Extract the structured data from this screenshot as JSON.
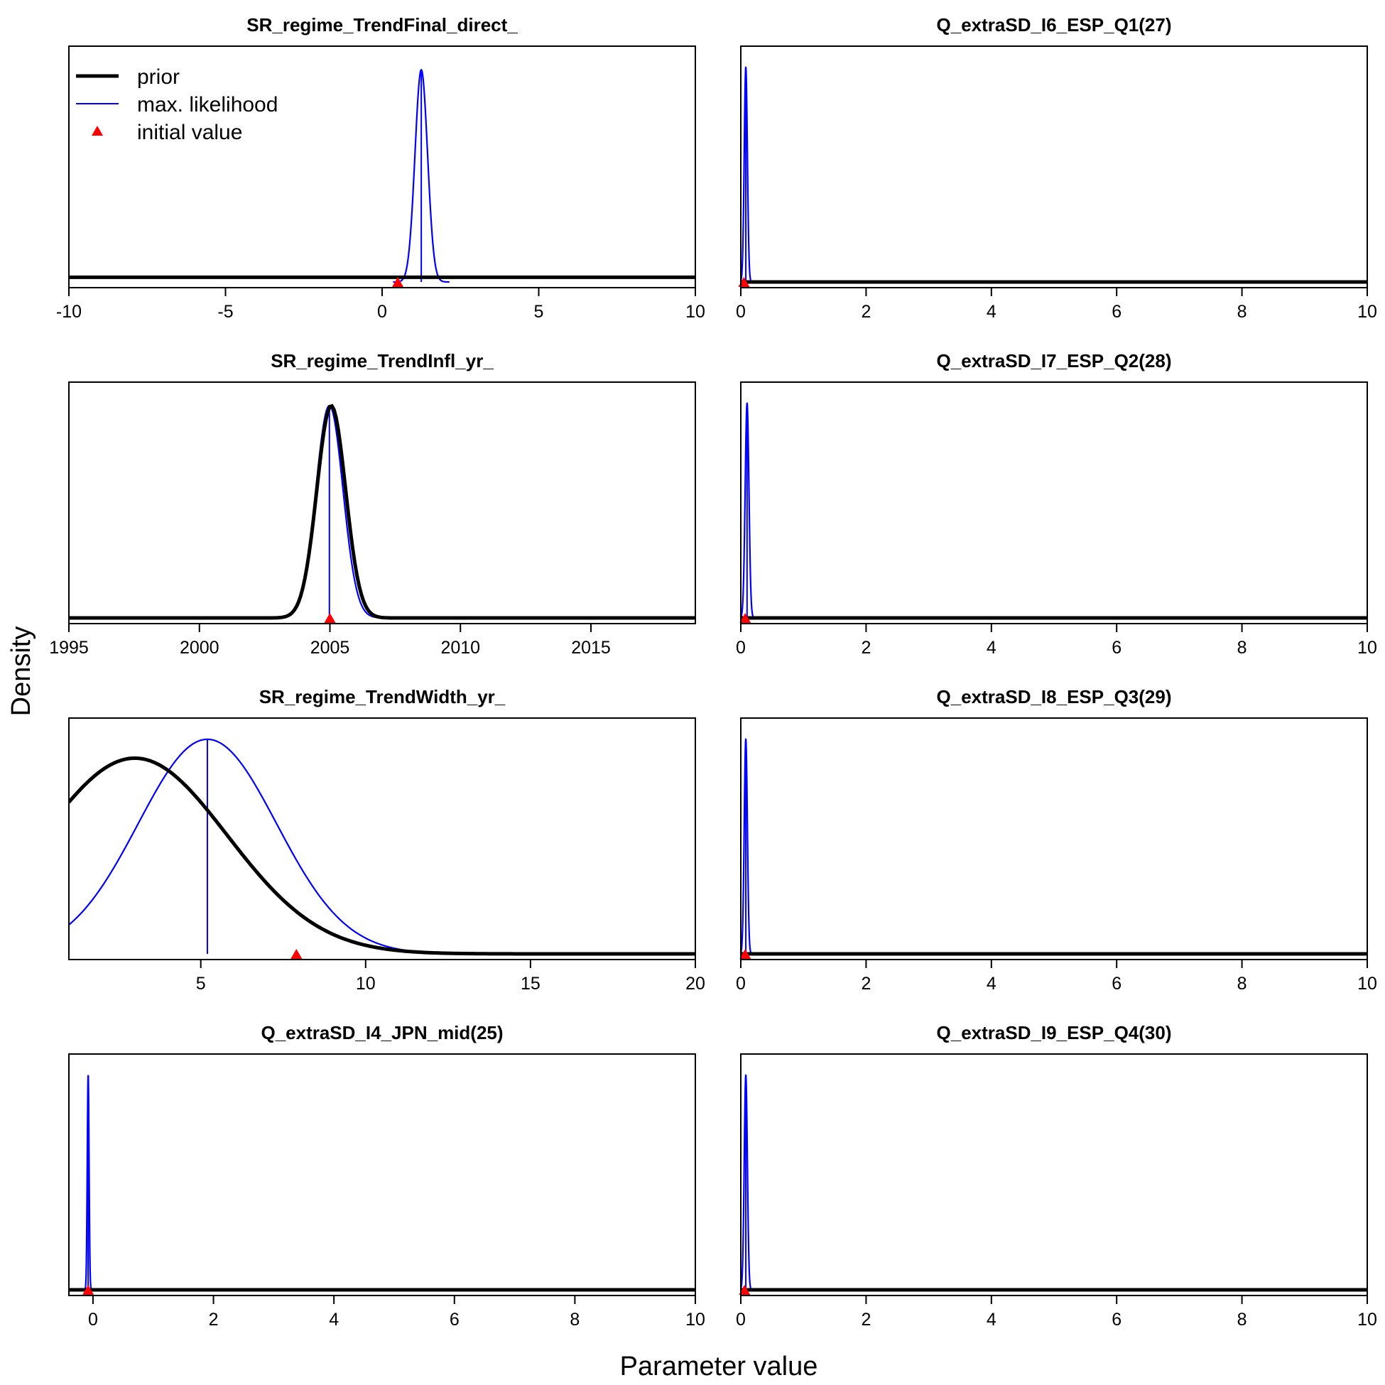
{
  "figure": {
    "xlabel": "Parameter value",
    "ylabel": "Density",
    "colors": {
      "prior": "#000000",
      "mle": "#0000ff",
      "initial": "#ff0000"
    }
  },
  "legend": {
    "placement": "top-left of first panel",
    "items": [
      {
        "label": "prior",
        "type": "thick-line",
        "color": "#000000"
      },
      {
        "label": "max. likelihood",
        "type": "thin-line",
        "color": "#0000ff"
      },
      {
        "label": "initial value",
        "type": "triangle",
        "color": "#ff0000"
      }
    ]
  },
  "chart_data": [
    {
      "type": "line",
      "title": "SR_regime_TrendFinal_direct_",
      "xlim": [
        -10,
        10
      ],
      "xticks": [
        -10,
        -5,
        0,
        5,
        10
      ],
      "xtick_labels": [
        "-10",
        "-5",
        "0",
        "5",
        "10"
      ],
      "prior": {
        "dist": "flat",
        "relative_level": 0.02
      },
      "mle": {
        "mean": 1.25,
        "sd": 0.2,
        "relative_peak": 0.9
      },
      "initial_value": 0.5
    },
    {
      "type": "line",
      "title": "Q_extraSD_I6_ESP_Q1(27)",
      "xlim": [
        0,
        10
      ],
      "xticks": [
        0,
        2,
        4,
        6,
        8,
        10
      ],
      "xtick_labels": [
        "0",
        "2",
        "4",
        "6",
        "8",
        "10"
      ],
      "prior": {
        "dist": "flat",
        "relative_level": 0.0
      },
      "mle": {
        "mean": 0.08,
        "sd": 0.025,
        "relative_peak": 0.91
      },
      "initial_value": 0.05
    },
    {
      "type": "line",
      "title": "SR_regime_TrendInfl_yr_",
      "xlim": [
        1995,
        2019
      ],
      "xticks": [
        1995,
        2000,
        2005,
        2010,
        2015
      ],
      "xtick_labels": [
        "1995",
        "2000",
        "2005",
        "2010",
        "2015"
      ],
      "prior": {
        "dist": "normal",
        "mean": 2005.05,
        "sd": 0.55,
        "relative_peak": 0.9
      },
      "mle": {
        "mean": 2004.98,
        "sd": 0.52,
        "relative_peak": 0.9
      },
      "initial_value": 2005
    },
    {
      "type": "line",
      "title": "Q_extraSD_I7_ESP_Q2(28)",
      "xlim": [
        0,
        10
      ],
      "xticks": [
        0,
        2,
        4,
        6,
        8,
        10
      ],
      "xtick_labels": [
        "0",
        "2",
        "4",
        "6",
        "8",
        "10"
      ],
      "prior": {
        "dist": "flat",
        "relative_level": 0.0
      },
      "mle": {
        "mean": 0.1,
        "sd": 0.03,
        "relative_peak": 0.91
      },
      "initial_value": 0.07
    },
    {
      "type": "line",
      "title": "SR_regime_TrendWidth_yr_",
      "xlim": [
        1,
        20
      ],
      "xticks": [
        5,
        10,
        15,
        20
      ],
      "xtick_labels": [
        "5",
        "10",
        "15",
        "20"
      ],
      "prior": {
        "dist": "normal",
        "mean": 3.0,
        "sd": 2.8,
        "relative_peak": 0.83
      },
      "mle": {
        "mean": 5.2,
        "sd": 2.1,
        "relative_peak": 0.91
      },
      "initial_value": 7.9
    },
    {
      "type": "line",
      "title": "Q_extraSD_I8_ESP_Q3(29)",
      "xlim": [
        0,
        10
      ],
      "xticks": [
        0,
        2,
        4,
        6,
        8,
        10
      ],
      "xtick_labels": [
        "0",
        "2",
        "4",
        "6",
        "8",
        "10"
      ],
      "prior": {
        "dist": "flat",
        "relative_level": 0.0
      },
      "mle": {
        "mean": 0.08,
        "sd": 0.025,
        "relative_peak": 0.91
      },
      "initial_value": 0.07
    },
    {
      "type": "line",
      "title": "Q_extraSD_I4_JPN_mid(25)",
      "xlim": [
        -0.4,
        10
      ],
      "xticks": [
        0,
        2,
        4,
        6,
        8,
        10
      ],
      "xtick_labels": [
        "0",
        "2",
        "4",
        "6",
        "8",
        "10"
      ],
      "prior": {
        "dist": "flat",
        "relative_level": 0.0
      },
      "mle": {
        "mean": -0.08,
        "sd": 0.015,
        "relative_peak": 0.91
      },
      "initial_value": -0.08
    },
    {
      "type": "line",
      "title": "Q_extraSD_I9_ESP_Q4(30)",
      "xlim": [
        0,
        10
      ],
      "xticks": [
        0,
        2,
        4,
        6,
        8,
        10
      ],
      "xtick_labels": [
        "0",
        "2",
        "4",
        "6",
        "8",
        "10"
      ],
      "prior": {
        "dist": "flat",
        "relative_level": 0.0
      },
      "mle": {
        "mean": 0.08,
        "sd": 0.025,
        "relative_peak": 0.91
      },
      "initial_value": 0.06
    }
  ]
}
